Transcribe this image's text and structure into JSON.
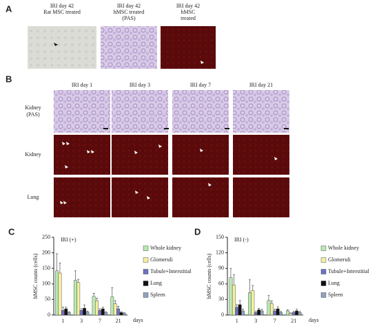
{
  "panel_a": {
    "label": "A",
    "captions": [
      [
        "IRI day 42",
        "Rat MSC treated"
      ],
      [
        "IRI day 42",
        "hMSC treated",
        "(PAS)"
      ],
      [
        "IRI day 42",
        "hMSC",
        "treated"
      ]
    ]
  },
  "panel_b": {
    "label": "B",
    "columns": [
      "IRI day 1",
      "IRI day 3",
      "IRI day 7",
      "IRI day 21"
    ],
    "rows": [
      [
        "Kidney",
        "(PAS)"
      ],
      [
        "Kidney"
      ],
      [
        "Lung"
      ]
    ]
  },
  "chart_data": [
    {
      "type": "bar",
      "label": "C",
      "title": "IRI (+)",
      "y_label": "hMSC counts (cells)",
      "x_label": "days",
      "categories": [
        "1",
        "3",
        "7",
        "21"
      ],
      "ylim": [
        0,
        250
      ],
      "yticks": [
        0,
        50,
        100,
        150,
        200,
        250
      ],
      "series": [
        {
          "name": "Whole kidney",
          "color": "#b9e8b2",
          "values": [
            142,
            112,
            60,
            58
          ],
          "errors": [
            55,
            30,
            10,
            30
          ]
        },
        {
          "name": "Glomeruli",
          "color": "#f3efa2",
          "values": [
            135,
            105,
            46,
            36
          ],
          "errors": [
            32,
            10,
            8,
            10
          ]
        },
        {
          "name": "Tubule+Interstitial",
          "color": "#6f70c4",
          "values": [
            15,
            15,
            15,
            20
          ],
          "errors": [
            10,
            5,
            5,
            8
          ]
        },
        {
          "name": "Lung",
          "color": "#111111",
          "values": [
            20,
            22,
            20,
            8
          ],
          "errors": [
            5,
            10,
            5,
            3
          ]
        },
        {
          "name": "Spleen",
          "color": "#8fa3bb",
          "values": [
            8,
            10,
            8,
            5
          ],
          "errors": [
            3,
            3,
            3,
            2
          ]
        }
      ]
    },
    {
      "type": "bar",
      "label": "D",
      "title": "IRI (-)",
      "y_label": "hMSC counts (cells)",
      "x_label": "days",
      "categories": [
        "1",
        "3",
        "7",
        "21"
      ],
      "ylim": [
        0,
        150
      ],
      "yticks": [
        0,
        30,
        60,
        90,
        120,
        150
      ],
      "series": [
        {
          "name": "Whole kidney",
          "color": "#b9e8b2",
          "values": [
            72,
            43,
            28,
            8
          ],
          "errors": [
            18,
            25,
            10,
            2
          ]
        },
        {
          "name": "Glomeruli",
          "color": "#f3efa2",
          "values": [
            58,
            47,
            22,
            3
          ],
          "errors": [
            20,
            10,
            5,
            1
          ]
        },
        {
          "name": "Tubule+Interstitial",
          "color": "#6f70c4",
          "values": [
            15,
            5,
            8,
            5
          ],
          "errors": [
            5,
            2,
            3,
            2
          ]
        },
        {
          "name": "Lung",
          "color": "#111111",
          "values": [
            20,
            10,
            12,
            8
          ],
          "errors": [
            8,
            3,
            4,
            3
          ]
        },
        {
          "name": "Spleen",
          "color": "#8fa3bb",
          "values": [
            8,
            8,
            5,
            5
          ],
          "errors": [
            3,
            3,
            2,
            2
          ]
        }
      ]
    }
  ]
}
